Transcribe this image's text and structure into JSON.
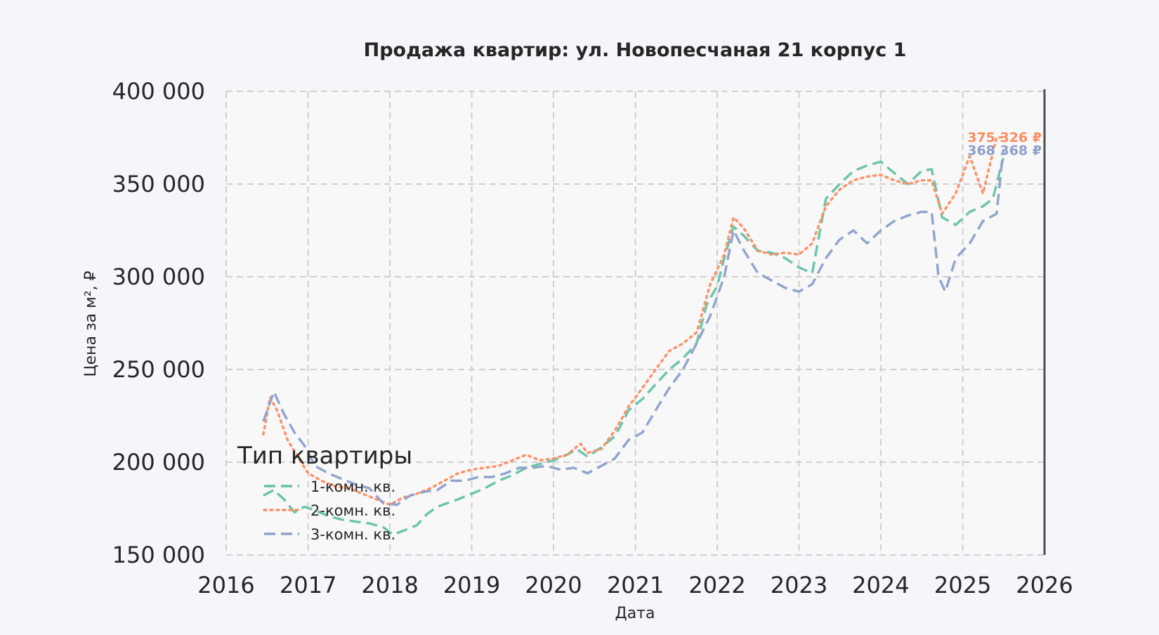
{
  "chart_data": {
    "type": "line",
    "title": "Продажа квартир: ул. Новопесчаная 21 корпус 1",
    "xlabel": "Дата",
    "ylabel": "Цена за м², ₽",
    "xlim": [
      "2016-01-01",
      "2026-01-01"
    ],
    "ylim": [
      150000,
      400000
    ],
    "x_ticks": [
      "2016",
      "2017",
      "2018",
      "2019",
      "2020",
      "2021",
      "2022",
      "2023",
      "2024",
      "2025",
      "2026"
    ],
    "y_ticks": [
      150000,
      200000,
      250000,
      300000,
      350000,
      400000
    ],
    "y_tick_labels": [
      "150 000",
      "200 000",
      "250 000",
      "300 000",
      "350 000",
      "400 000"
    ],
    "grid": true,
    "legend": {
      "title": "Тип квартиры",
      "position": "bottom-left"
    },
    "series": [
      {
        "name": "1-комн. кв.",
        "color": "#66c2a5",
        "dash": "dashed",
        "end_label": "",
        "points": [
          [
            "2016-06-15",
            182000
          ],
          [
            "2016-08-01",
            185000
          ],
          [
            "2016-09-15",
            180000
          ],
          [
            "2016-11-01",
            173000
          ],
          [
            "2016-12-15",
            176000
          ],
          [
            "2017-02-01",
            174000
          ],
          [
            "2017-04-01",
            171000
          ],
          [
            "2017-06-01",
            169000
          ],
          [
            "2017-08-01",
            168000
          ],
          [
            "2017-10-01",
            167000
          ],
          [
            "2017-12-01",
            165000
          ],
          [
            "2018-01-15",
            161000
          ],
          [
            "2018-03-01",
            163000
          ],
          [
            "2018-05-01",
            166000
          ],
          [
            "2018-06-15",
            172000
          ],
          [
            "2018-08-01",
            176000
          ],
          [
            "2018-09-15",
            178000
          ],
          [
            "2018-11-01",
            180000
          ],
          [
            "2019-01-01",
            183000
          ],
          [
            "2019-03-01",
            186000
          ],
          [
            "2019-05-01",
            190000
          ],
          [
            "2019-07-01",
            193000
          ],
          [
            "2019-09-01",
            197000
          ],
          [
            "2019-11-01",
            199000
          ],
          [
            "2020-01-01",
            201000
          ],
          [
            "2020-03-01",
            204000
          ],
          [
            "2020-04-15",
            207000
          ],
          [
            "2020-06-01",
            203000
          ],
          [
            "2020-08-01",
            208000
          ],
          [
            "2020-10-01",
            214000
          ],
          [
            "2020-11-15",
            224000
          ],
          [
            "2020-12-01",
            228000
          ],
          [
            "2021-02-01",
            234000
          ],
          [
            "2021-04-01",
            242000
          ],
          [
            "2021-06-01",
            250000
          ],
          [
            "2021-08-01",
            256000
          ],
          [
            "2021-10-01",
            264000
          ],
          [
            "2021-11-15",
            285000
          ],
          [
            "2022-01-01",
            295000
          ],
          [
            "2022-02-01",
            310000
          ],
          [
            "2022-03-15",
            327000
          ],
          [
            "2022-05-01",
            322000
          ],
          [
            "2022-07-01",
            314000
          ],
          [
            "2022-09-01",
            313000
          ],
          [
            "2022-11-01",
            310000
          ],
          [
            "2023-01-01",
            305000
          ],
          [
            "2023-03-01",
            302000
          ],
          [
            "2023-05-01",
            342000
          ],
          [
            "2023-07-01",
            350000
          ],
          [
            "2023-09-01",
            357000
          ],
          [
            "2023-11-01",
            360000
          ],
          [
            "2024-01-01",
            362000
          ],
          [
            "2024-03-01",
            356000
          ],
          [
            "2024-05-01",
            350000
          ],
          [
            "2024-07-01",
            357000
          ],
          [
            "2024-08-15",
            358000
          ],
          [
            "2024-10-01",
            332000
          ],
          [
            "2024-12-01",
            328000
          ],
          [
            "2025-02-01",
            335000
          ],
          [
            "2025-04-01",
            338000
          ],
          [
            "2025-05-15",
            342000
          ],
          [
            "2025-07-01",
            364000
          ]
        ]
      },
      {
        "name": "2-комн. кв.",
        "color": "#fc8d62",
        "dash": "dotted",
        "end_label": "375 326 ₽",
        "points": [
          [
            "2016-06-15",
            215000
          ],
          [
            "2016-07-15",
            235000
          ],
          [
            "2016-08-15",
            228000
          ],
          [
            "2016-10-01",
            212000
          ],
          [
            "2016-11-15",
            203000
          ],
          [
            "2017-01-01",
            194000
          ],
          [
            "2017-03-01",
            190000
          ],
          [
            "2017-05-01",
            187000
          ],
          [
            "2017-07-01",
            186000
          ],
          [
            "2017-09-01",
            183000
          ],
          [
            "2017-11-01",
            180000
          ],
          [
            "2018-01-01",
            177000
          ],
          [
            "2018-03-01",
            181000
          ],
          [
            "2018-05-01",
            183000
          ],
          [
            "2018-07-01",
            186000
          ],
          [
            "2018-09-01",
            190000
          ],
          [
            "2018-11-01",
            194000
          ],
          [
            "2019-01-01",
            196000
          ],
          [
            "2019-03-01",
            197000
          ],
          [
            "2019-05-01",
            198000
          ],
          [
            "2019-07-01",
            201000
          ],
          [
            "2019-09-01",
            204000
          ],
          [
            "2019-11-01",
            201000
          ],
          [
            "2020-01-01",
            202000
          ],
          [
            "2020-03-01",
            204000
          ],
          [
            "2020-05-01",
            210000
          ],
          [
            "2020-06-01",
            205000
          ],
          [
            "2020-08-01",
            207000
          ],
          [
            "2020-10-01",
            217000
          ],
          [
            "2020-12-01",
            230000
          ],
          [
            "2021-02-01",
            240000
          ],
          [
            "2021-04-01",
            250000
          ],
          [
            "2021-06-01",
            260000
          ],
          [
            "2021-08-01",
            264000
          ],
          [
            "2021-10-01",
            270000
          ],
          [
            "2021-12-01",
            296000
          ],
          [
            "2022-02-01",
            312000
          ],
          [
            "2022-03-15",
            332000
          ],
          [
            "2022-05-01",
            326000
          ],
          [
            "2022-07-01",
            314000
          ],
          [
            "2022-09-01",
            312000
          ],
          [
            "2022-11-01",
            313000
          ],
          [
            "2023-01-01",
            312000
          ],
          [
            "2023-03-01",
            318000
          ],
          [
            "2023-05-01",
            338000
          ],
          [
            "2023-07-01",
            347000
          ],
          [
            "2023-09-01",
            352000
          ],
          [
            "2023-11-01",
            354000
          ],
          [
            "2024-01-01",
            355000
          ],
          [
            "2024-03-01",
            352000
          ],
          [
            "2024-05-01",
            350000
          ],
          [
            "2024-07-01",
            352000
          ],
          [
            "2024-08-15",
            352000
          ],
          [
            "2024-10-01",
            334000
          ],
          [
            "2024-12-01",
            345000
          ],
          [
            "2025-02-01",
            365000
          ],
          [
            "2025-04-01",
            345000
          ],
          [
            "2025-06-01",
            375000
          ],
          [
            "2025-07-01",
            375326
          ]
        ]
      },
      {
        "name": "3-комн. кв.",
        "color": "#8da0cb",
        "dash": "dashed",
        "end_label": "368 368 ₽",
        "points": [
          [
            "2016-06-15",
            222000
          ],
          [
            "2016-08-01",
            238000
          ],
          [
            "2016-09-15",
            226000
          ],
          [
            "2016-11-01",
            216000
          ],
          [
            "2016-12-15",
            209000
          ],
          [
            "2017-02-01",
            198000
          ],
          [
            "2017-04-01",
            194000
          ],
          [
            "2017-06-01",
            191000
          ],
          [
            "2017-08-01",
            188000
          ],
          [
            "2017-10-01",
            186000
          ],
          [
            "2017-12-01",
            178000
          ],
          [
            "2018-02-01",
            177000
          ],
          [
            "2018-04-01",
            182000
          ],
          [
            "2018-06-01",
            184000
          ],
          [
            "2018-08-01",
            185000
          ],
          [
            "2018-10-01",
            190000
          ],
          [
            "2018-12-01",
            190000
          ],
          [
            "2019-02-01",
            192000
          ],
          [
            "2019-04-01",
            192000
          ],
          [
            "2019-06-01",
            194000
          ],
          [
            "2019-08-01",
            197000
          ],
          [
            "2019-10-01",
            197000
          ],
          [
            "2019-12-01",
            198000
          ],
          [
            "2020-02-01",
            196000
          ],
          [
            "2020-04-01",
            197000
          ],
          [
            "2020-06-01",
            194000
          ],
          [
            "2020-08-01",
            198000
          ],
          [
            "2020-10-01",
            202000
          ],
          [
            "2020-12-01",
            212000
          ],
          [
            "2021-02-01",
            216000
          ],
          [
            "2021-04-01",
            228000
          ],
          [
            "2021-06-01",
            240000
          ],
          [
            "2021-08-01",
            250000
          ],
          [
            "2021-10-01",
            264000
          ],
          [
            "2021-12-01",
            279000
          ],
          [
            "2022-02-01",
            300000
          ],
          [
            "2022-03-15",
            325000
          ],
          [
            "2022-05-01",
            314000
          ],
          [
            "2022-07-01",
            302000
          ],
          [
            "2022-09-01",
            298000
          ],
          [
            "2022-11-01",
            294000
          ],
          [
            "2023-01-01",
            292000
          ],
          [
            "2023-03-01",
            296000
          ],
          [
            "2023-05-01",
            310000
          ],
          [
            "2023-07-01",
            320000
          ],
          [
            "2023-09-01",
            325000
          ],
          [
            "2023-11-01",
            318000
          ],
          [
            "2024-01-01",
            325000
          ],
          [
            "2024-03-01",
            330000
          ],
          [
            "2024-05-01",
            333000
          ],
          [
            "2024-07-01",
            335000
          ],
          [
            "2024-08-15",
            335000
          ],
          [
            "2024-09-15",
            300000
          ],
          [
            "2024-10-15",
            292000
          ],
          [
            "2024-12-01",
            310000
          ],
          [
            "2025-02-01",
            318000
          ],
          [
            "2025-04-01",
            330000
          ],
          [
            "2025-06-01",
            334000
          ],
          [
            "2025-07-01",
            368368
          ]
        ]
      }
    ]
  }
}
